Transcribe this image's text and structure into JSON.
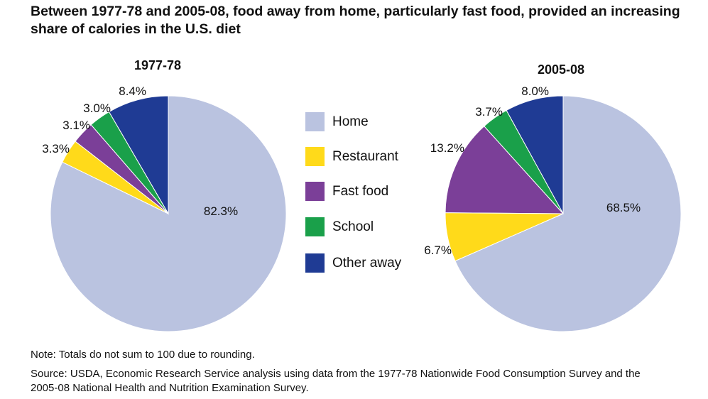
{
  "title": "Between 1977-78 and 2005-08, food away from home, particularly fast food, provided an increasing share of calories in the U.S. diet",
  "note": "Note: Totals do not sum to 100 due to rounding.",
  "source": "Source: USDA, Economic Research Service analysis using data from the 1977-78 Nationwide Food Consumption Survey and the 2005-08 National Health and Nutrition Examination Survey.",
  "legend": [
    {
      "label": "Home",
      "color": "#bac3e0"
    },
    {
      "label": "Restaurant",
      "color": "#ffda1a"
    },
    {
      "label": "Fast food",
      "color": "#7b3f98"
    },
    {
      "label": "School",
      "color": "#1aa04a"
    },
    {
      "label": "Other away",
      "color": "#1f3b94"
    }
  ],
  "chart_data": [
    {
      "type": "pie",
      "title": "1977-78",
      "slices": [
        {
          "name": "Home",
          "value": 82.3,
          "label": "82.3%"
        },
        {
          "name": "Restaurant",
          "value": 3.3,
          "label": "3.3%"
        },
        {
          "name": "Fast food",
          "value": 3.1,
          "label": "3.1%"
        },
        {
          "name": "School",
          "value": 3.0,
          "label": "3.0%"
        },
        {
          "name": "Other away",
          "value": 8.4,
          "label": "8.4%"
        }
      ]
    },
    {
      "type": "pie",
      "title": "2005-08",
      "slices": [
        {
          "name": "Home",
          "value": 68.5,
          "label": "68.5%"
        },
        {
          "name": "Restaurant",
          "value": 6.7,
          "label": "6.7%"
        },
        {
          "name": "Fast food",
          "value": 13.2,
          "label": "13.2%"
        },
        {
          "name": "School",
          "value": 3.7,
          "label": "3.7%"
        },
        {
          "name": "Other away",
          "value": 8.0,
          "label": "8.0%"
        }
      ]
    }
  ]
}
